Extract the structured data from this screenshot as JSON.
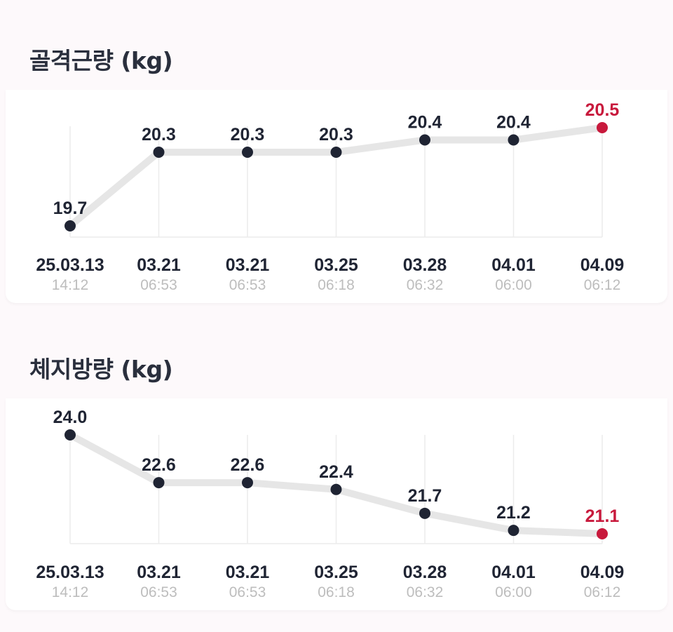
{
  "colors": {
    "point": "#1f2433",
    "latest": "#c8193c",
    "line": "#e6e6e6",
    "grid": "#ececec",
    "time_text": "#bdbdbd"
  },
  "chart_data": [
    {
      "type": "line",
      "title": "골격근량 (kg)",
      "categories": [
        "25.03.13",
        "03.21",
        "03.21",
        "03.25",
        "03.28",
        "04.01",
        "04.09"
      ],
      "times": [
        "14:12",
        "06:53",
        "06:53",
        "06:18",
        "06:32",
        "06:00",
        "06:12"
      ],
      "series": [
        {
          "values": [
            19.7,
            20.3,
            20.3,
            20.3,
            20.4,
            20.4,
            20.5
          ]
        }
      ],
      "value_labels": [
        "19.7",
        "20.3",
        "20.3",
        "20.3",
        "20.4",
        "20.4",
        "20.5"
      ],
      "highlight_index": 6,
      "xlabel": "",
      "ylabel": "",
      "grid": true
    },
    {
      "type": "line",
      "title": "체지방량 (kg)",
      "categories": [
        "25.03.13",
        "03.21",
        "03.21",
        "03.25",
        "03.28",
        "04.01",
        "04.09"
      ],
      "times": [
        "14:12",
        "06:53",
        "06:53",
        "06:18",
        "06:32",
        "06:00",
        "06:12"
      ],
      "series": [
        {
          "values": [
            24.0,
            22.6,
            22.6,
            22.4,
            21.7,
            21.2,
            21.1
          ]
        }
      ],
      "value_labels": [
        "24.0",
        "22.6",
        "22.6",
        "22.4",
        "21.7",
        "21.2",
        "21.1"
      ],
      "highlight_index": 6,
      "xlabel": "",
      "ylabel": "",
      "grid": true
    }
  ]
}
